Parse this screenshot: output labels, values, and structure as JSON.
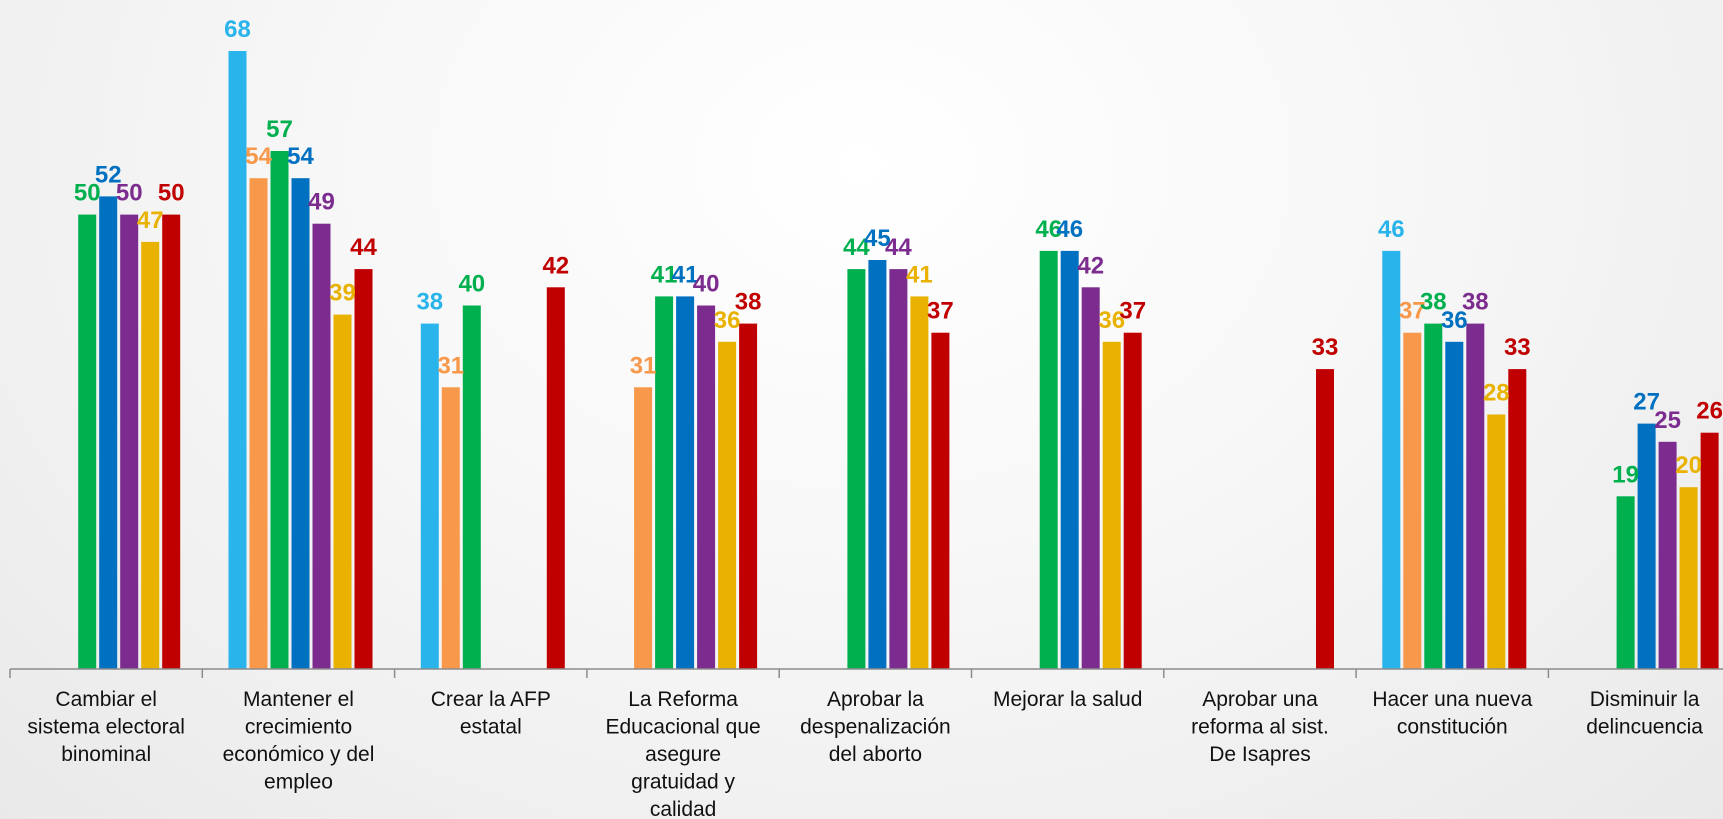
{
  "chart_data": {
    "type": "bar",
    "categories": [
      "Cambiar el sistema electoral binominal",
      "Mantener el crecimiento económico y del empleo",
      "Crear la AFP estatal",
      "La Reforma Educacional que asegure gratuidad y calidad",
      "Aprobar la despenalización del aborto",
      "Mejorar la salud",
      "Aprobar una reforma al sist. De Isapres",
      "Hacer una nueva constitución",
      "Disminuir la delincuencia"
    ],
    "category_lines": [
      [
        "Cambiar el",
        "sistema electoral",
        "binominal"
      ],
      [
        "Mantener el",
        "crecimiento",
        "económico y del",
        "empleo"
      ],
      [
        "Crear la AFP",
        "estatal"
      ],
      [
        "La Reforma",
        "Educacional que",
        "asegure",
        "gratuidad y",
        "calidad"
      ],
      [
        "Aprobar la",
        "despenalización",
        "del aborto"
      ],
      [
        "Mejorar la salud"
      ],
      [
        "Aprobar una",
        "reforma al sist.",
        "De Isapres"
      ],
      [
        "Hacer una nueva",
        "constitución"
      ],
      [
        "Disminuir la",
        "delincuencia"
      ]
    ],
    "series": [
      {
        "color": "#29b4ec",
        "values": [
          null,
          68,
          38,
          null,
          null,
          null,
          null,
          46,
          null
        ]
      },
      {
        "color": "#f7984a",
        "values": [
          null,
          54,
          31,
          31,
          null,
          null,
          null,
          37,
          null
        ]
      },
      {
        "color": "#00b04f",
        "values": [
          50,
          57,
          40,
          41,
          44,
          46,
          null,
          38,
          19
        ]
      },
      {
        "color": "#0070c0",
        "values": [
          52,
          54,
          null,
          41,
          45,
          46,
          null,
          36,
          27
        ]
      },
      {
        "color": "#7b2c8e",
        "values": [
          50,
          49,
          null,
          40,
          44,
          42,
          null,
          38,
          25
        ]
      },
      {
        "color": "#e9b200",
        "values": [
          47,
          39,
          null,
          36,
          41,
          36,
          null,
          28,
          20
        ]
      },
      {
        "color": "#c00000",
        "values": [
          50,
          44,
          42,
          38,
          37,
          37,
          33,
          33,
          26
        ]
      }
    ],
    "ylim": [
      0,
      68
    ],
    "grid": false,
    "legend": "none",
    "xlabel": "",
    "ylabel": ""
  }
}
